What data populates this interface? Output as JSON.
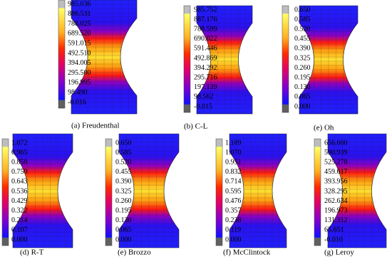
{
  "panels": [
    {
      "caption": "(a) Freudenthal",
      "legend": [
        "985.036",
        "886.531",
        "788.025",
        "689.520",
        "591.015",
        "492.510",
        "394.005",
        "295.500",
        "196.995",
        "98.490",
        "-0.016"
      ]
    },
    {
      "caption": "(b) C-L",
      "legend": [
        "985.752",
        "887.176",
        "788.599",
        "690.022",
        "591.446",
        "492.869",
        "394.292",
        "295.716",
        "197.139",
        "98.562",
        "-0.015"
      ]
    },
    {
      "caption": "(e) Oh",
      "legend": [
        "0.650",
        "0.585",
        "0.520",
        "0.455",
        "0.390",
        "0.325",
        "0.260",
        "0.195",
        "0.130",
        "0.065",
        "0.000"
      ]
    },
    {
      "caption": "(d) R-T",
      "legend": [
        "1.072",
        "0.965",
        "0.858",
        "0.750",
        "0.643",
        "0.536",
        "0.429",
        "0.322",
        "0.214",
        "0.107",
        "0.000"
      ]
    },
    {
      "caption": "(e) Brozzo",
      "legend": [
        "0.650",
        "0.585",
        "0.520",
        "0.455",
        "0.390",
        "0.325",
        "0.260",
        "0.195",
        "0.130",
        "0.065",
        "0.000"
      ]
    },
    {
      "caption": "(f) McClintock",
      "legend": [
        "1.189",
        "1.070",
        "0.951",
        "0.832",
        "0.714",
        "0.595",
        "0.476",
        "0.357",
        "0.238",
        "0.119",
        "0.000"
      ]
    },
    {
      "caption": "(g) Leroy",
      "legend": [
        "656.600",
        "590.939",
        "525.278",
        "459.617",
        "393.956",
        "328.295",
        "262.634",
        "196.973",
        "131.312",
        "65.651",
        "-0.010"
      ]
    }
  ]
}
